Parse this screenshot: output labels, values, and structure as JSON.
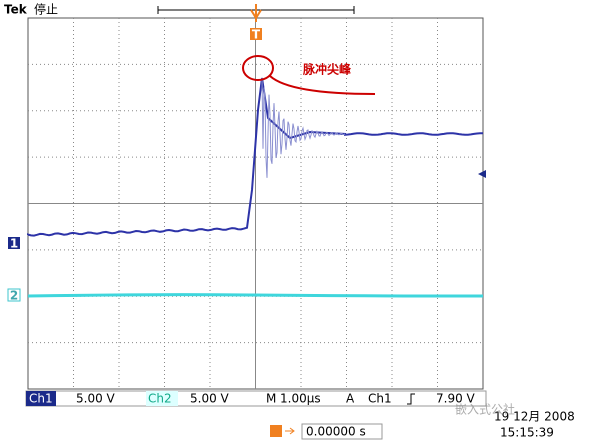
{
  "header": {
    "brand": "Tek",
    "status": "停止"
  },
  "annotation": "脉冲尖峰",
  "markers": {
    "ch1": "1",
    "ch2": "2",
    "trigger": "T"
  },
  "status_bar": {
    "ch1_label": "Ch1",
    "ch1_scale": "5.00 V",
    "ch2_label": "Ch2",
    "ch2_scale": "5.00 V",
    "time_label": "M",
    "time_scale": "1.00µs",
    "trigger_mode": "A",
    "trigger_source": "Ch1",
    "trigger_level": "7.90 V"
  },
  "date": "19 12月 2008",
  "time": "15:15:39",
  "trigger_position": "0.00000 s",
  "watermark": "嵌入式公社"
}
